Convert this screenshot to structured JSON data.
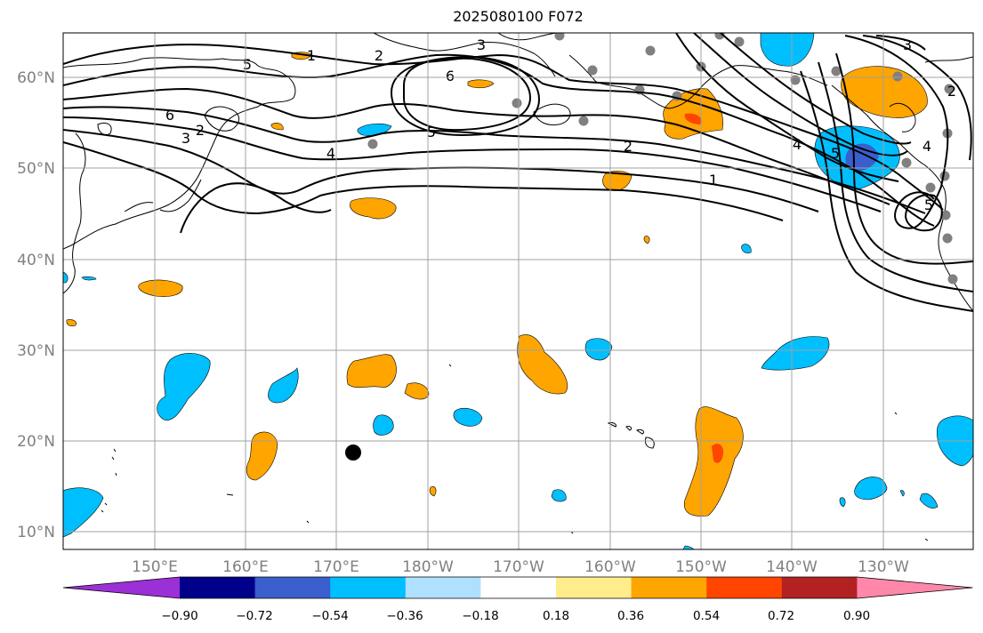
{
  "title": "2025080100 F072",
  "latitude_labels": [
    "60°N",
    "50°N",
    "40°N",
    "30°N",
    "20°N",
    "10°N"
  ],
  "longitude_labels": [
    "150°E",
    "160°E",
    "170°E",
    "180°W",
    "170°W",
    "160°W",
    "150°W",
    "140°W",
    "130°W"
  ],
  "contour_labels": [
    "1",
    "2",
    "3",
    "6",
    "6",
    "5",
    "4",
    "2",
    "1",
    "4",
    "5",
    "5",
    "2",
    "3",
    "3",
    "2",
    "4",
    "5"
  ],
  "colorbar": {
    "tick_labels": [
      "−0.90",
      "−0.72",
      "−0.54",
      "−0.36",
      "−0.18",
      "0.18",
      "0.36",
      "0.54",
      "0.72",
      "0.90"
    ],
    "colors": [
      "#9b30d6",
      "#00008b",
      "#3a5fcd",
      "#00bfff",
      "#b0e0ff",
      "#ffffff",
      "#ffec8b",
      "#ffa500",
      "#ff4500",
      "#b22222",
      "#ff88aa"
    ]
  }
}
